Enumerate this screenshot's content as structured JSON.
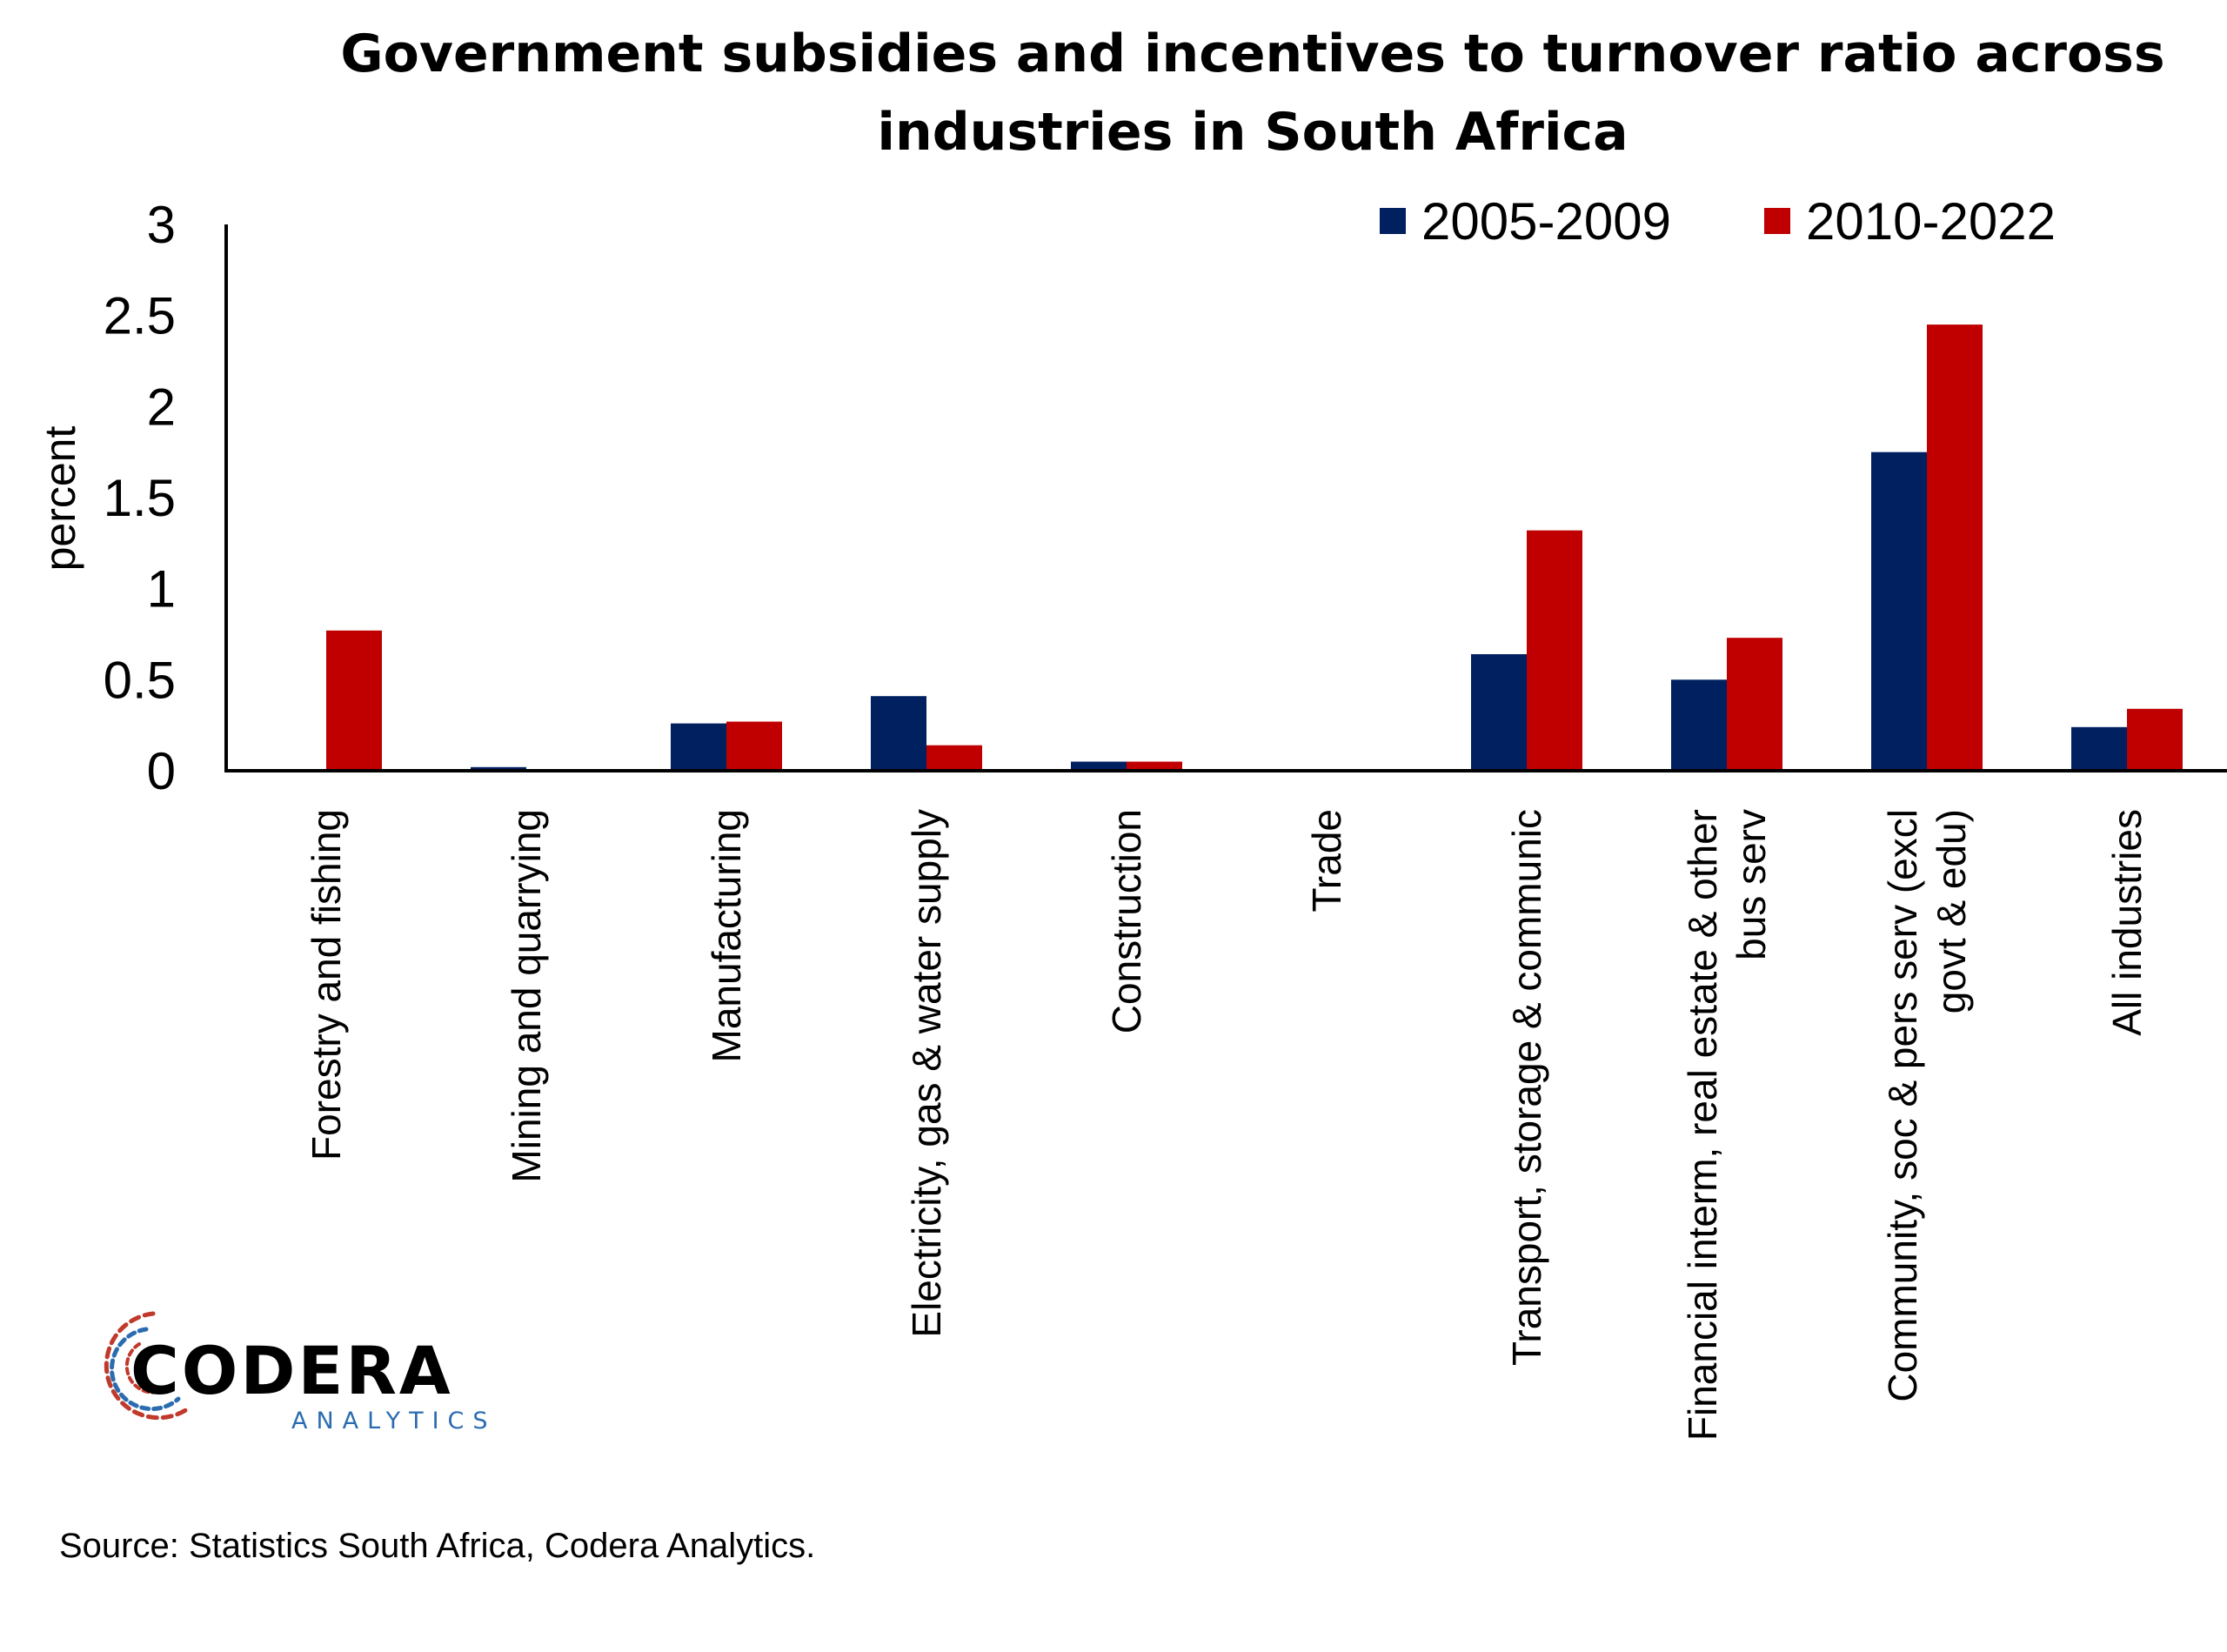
{
  "chart_data": {
    "type": "bar",
    "title": "Government subsidies and incentives to turnover ratio across industries in South Africa",
    "title_lines": [
      "Government subsidies and incentives to turnover ratio across",
      "industries in South Africa"
    ],
    "ylabel": "percent",
    "xlabel": "",
    "ylim": [
      0,
      3
    ],
    "yticks": [
      "0",
      "0.5",
      "1",
      "1.5",
      "2",
      "2.5",
      "3"
    ],
    "grid": false,
    "legend_position": "top-right",
    "categories": [
      "Forestry and fishing",
      "Mining and quarrying",
      "Manufacturing",
      "Electricity, gas & water supply",
      "Construction",
      "Trade",
      "Transport, storage & communic",
      "Financial interm, real estate & other bus serv",
      "Community, soc & pers serv  (excl govt & edu)",
      "All industries"
    ],
    "category_lines": [
      [
        "Forestry and fishing"
      ],
      [
        "Mining and quarrying"
      ],
      [
        "Manufacturing"
      ],
      [
        "Electricity, gas & water supply"
      ],
      [
        "Construction"
      ],
      [
        "Trade"
      ],
      [
        "Transport, storage & communic"
      ],
      [
        "Financial interm, real estate & other",
        "bus serv"
      ],
      [
        "Community, soc & pers serv  (excl",
        "govt & edu)"
      ],
      [
        "All industries"
      ]
    ],
    "series": [
      {
        "name": "2005-2009",
        "color": "#002060",
        "values": [
          0.0,
          0.02,
          0.26,
          0.41,
          0.05,
          0.0,
          0.64,
          0.5,
          1.75,
          0.24
        ]
      },
      {
        "name": "2010-2022",
        "color": "#C00000",
        "values": [
          0.77,
          0.0,
          0.27,
          0.14,
          0.05,
          0.0,
          1.32,
          0.73,
          2.45,
          0.34
        ]
      }
    ]
  },
  "logo": {
    "word": "CODERA",
    "sub": "ANALYTICS",
    "sub_color": "#2b6cb0"
  },
  "source": "Source: Statistics South Africa, Codera Analytics."
}
